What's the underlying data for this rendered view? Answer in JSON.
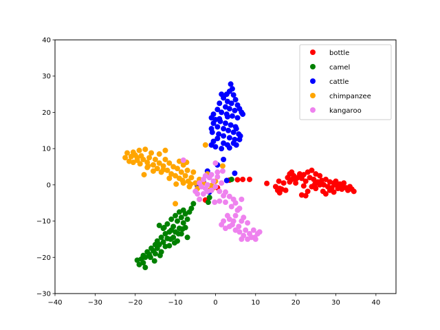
{
  "chart_data": {
    "type": "scatter",
    "title": "",
    "xlabel": "",
    "ylabel": "",
    "xlim": [
      -40,
      45
    ],
    "ylim": [
      -30,
      40
    ],
    "xticks": [
      -40,
      -30,
      -20,
      -10,
      0,
      10,
      20,
      30,
      40
    ],
    "yticks": [
      -30,
      -20,
      -10,
      0,
      10,
      20,
      30,
      40
    ],
    "grid": false,
    "legend_position": "top-right",
    "series": [
      {
        "name": "bottle",
        "color": "#ff0000",
        "points": [
          [
            12.8,
            0.4
          ],
          [
            15,
            -0.5
          ],
          [
            15.5,
            -1.5
          ],
          [
            16,
            -2.2
          ],
          [
            16.5,
            -1.2
          ],
          [
            17,
            0.5
          ],
          [
            17.5,
            -1.5
          ],
          [
            16,
            -1
          ],
          [
            15.8,
            1
          ],
          [
            18,
            2
          ],
          [
            18.5,
            3
          ],
          [
            19,
            3.5
          ],
          [
            19.5,
            2.5
          ],
          [
            20,
            1.5
          ],
          [
            20.5,
            2
          ],
          [
            21,
            3
          ],
          [
            21.5,
            1.8
          ],
          [
            22,
            2.8
          ],
          [
            22.5,
            1
          ],
          [
            23,
            3.5
          ],
          [
            23.5,
            2
          ],
          [
            24,
            4
          ],
          [
            24.5,
            1.5
          ],
          [
            25,
            3
          ],
          [
            25.5,
            0.8
          ],
          [
            26,
            2.5
          ],
          [
            26.5,
            1.2
          ],
          [
            27,
            0
          ],
          [
            27.5,
            1.5
          ],
          [
            28,
            -0.5
          ],
          [
            28.5,
            0.8
          ],
          [
            29,
            -0.8
          ],
          [
            29.5,
            0.5
          ],
          [
            30,
            1
          ],
          [
            30.5,
            -1
          ],
          [
            31,
            0.2
          ],
          [
            31.5,
            -1.2
          ],
          [
            32,
            0.5
          ],
          [
            32.5,
            -0.8
          ],
          [
            33,
            -1.5
          ],
          [
            33.5,
            -0.5
          ],
          [
            34,
            -1.2
          ],
          [
            34.5,
            -1.8
          ],
          [
            21.5,
            -2.8
          ],
          [
            22.5,
            -3
          ],
          [
            23,
            -1.8
          ],
          [
            24,
            -0.5
          ],
          [
            25,
            -1
          ],
          [
            26,
            0
          ],
          [
            27.5,
            -2.5
          ],
          [
            28.5,
            -1.5
          ],
          [
            30,
            0
          ],
          [
            31.5,
            -0.5
          ],
          [
            20,
            0.5
          ],
          [
            19,
            1.5
          ],
          [
            18.5,
            0.8
          ],
          [
            22,
            -0.3
          ],
          [
            24.8,
            0.2
          ],
          [
            26.8,
            -1.8
          ],
          [
            29.5,
            -2
          ],
          [
            -2.5,
            -4.2
          ],
          [
            5.5,
            1.4
          ],
          [
            6.8,
            1.5
          ],
          [
            8.5,
            1.5
          ],
          [
            3.5,
            1.3
          ],
          [
            0.5,
            -0.8
          ]
        ]
      },
      {
        "name": "camel",
        "color": "#008000",
        "points": [
          [
            -19.5,
            -20.8
          ],
          [
            -19,
            -22
          ],
          [
            -18.5,
            -20.5
          ],
          [
            -18,
            -21.5
          ],
          [
            -17.5,
            -20
          ],
          [
            -17,
            -18.5
          ],
          [
            -17.5,
            -22.8
          ],
          [
            -16.5,
            -19.2
          ],
          [
            -16,
            -17.5
          ],
          [
            -15.5,
            -18.2
          ],
          [
            -15,
            -16.5
          ],
          [
            -15,
            -19
          ],
          [
            -14.5,
            -17.5
          ],
          [
            -14.5,
            -15.5
          ],
          [
            -14,
            -16.5
          ],
          [
            -14,
            -11.2
          ],
          [
            -13.5,
            -14.5
          ],
          [
            -13.5,
            -18.5
          ],
          [
            -13,
            -15.8
          ],
          [
            -13,
            -12
          ],
          [
            -12.5,
            -13.5
          ],
          [
            -12.5,
            -17
          ],
          [
            -12,
            -14.8
          ],
          [
            -12,
            -10.8
          ],
          [
            -11.5,
            -13
          ],
          [
            -11.5,
            -16.8
          ],
          [
            -11,
            -12.5
          ],
          [
            -11,
            -9.5
          ],
          [
            -10.5,
            -14.5
          ],
          [
            -10.5,
            -11.5
          ],
          [
            -10,
            -8.5
          ],
          [
            -10,
            -13
          ],
          [
            -9.5,
            -10
          ],
          [
            -9.5,
            -15.5
          ],
          [
            -9,
            -7.5
          ],
          [
            -9,
            -12
          ],
          [
            -8.5,
            -9
          ],
          [
            -8.5,
            -13.5
          ],
          [
            -8,
            -10.5
          ],
          [
            -8,
            -7
          ],
          [
            -7.5,
            -11.8
          ],
          [
            -7.5,
            -8
          ],
          [
            -7,
            -14.5
          ],
          [
            -7,
            -9.5
          ],
          [
            -6.5,
            -7.5
          ],
          [
            -6,
            -6.5
          ],
          [
            -18,
            -19.5
          ],
          [
            -16.2,
            -20
          ],
          [
            -15.2,
            -21
          ],
          [
            -13.8,
            -19.5
          ],
          [
            -12.8,
            -11.8
          ],
          [
            -11.2,
            -15
          ],
          [
            -10.2,
            -16
          ],
          [
            -9.2,
            -13.5
          ],
          [
            -8.2,
            -12.2
          ],
          [
            -5.5,
            -5.2
          ],
          [
            -1.8,
            -4.8
          ],
          [
            -1.5,
            -3.5
          ],
          [
            4,
            1.5
          ]
        ]
      },
      {
        "name": "cattle",
        "color": "#0000ff",
        "points": [
          [
            3.8,
            27.8
          ],
          [
            4.2,
            26.5
          ],
          [
            3.5,
            25.8
          ],
          [
            2.8,
            25
          ],
          [
            4.5,
            24.8
          ],
          [
            5,
            23.5
          ],
          [
            1.5,
            25
          ],
          [
            2,
            24
          ],
          [
            3,
            23
          ],
          [
            4,
            22.5
          ],
          [
            5.5,
            22
          ],
          [
            6,
            21
          ],
          [
            1,
            22.5
          ],
          [
            2.5,
            21.5
          ],
          [
            3.5,
            21
          ],
          [
            4.8,
            20.5
          ],
          [
            6.5,
            20
          ],
          [
            0.5,
            20.8
          ],
          [
            1.5,
            20
          ],
          [
            2.8,
            19.5
          ],
          [
            4.2,
            19
          ],
          [
            5.5,
            18.5
          ],
          [
            6.8,
            19.5
          ],
          [
            -0.5,
            19.5
          ],
          [
            -1,
            18.5
          ],
          [
            0,
            18
          ],
          [
            1.2,
            17.5
          ],
          [
            2.5,
            17
          ],
          [
            3.8,
            16.5
          ],
          [
            5,
            16
          ],
          [
            -0.5,
            17
          ],
          [
            0.5,
            16
          ],
          [
            2,
            15.5
          ],
          [
            3.2,
            15
          ],
          [
            4.5,
            14.5
          ],
          [
            5.8,
            14
          ],
          [
            -1,
            15.5
          ],
          [
            -0.8,
            14.5
          ],
          [
            0.8,
            14
          ],
          [
            2,
            13.5
          ],
          [
            3.5,
            13
          ],
          [
            4.8,
            12.5
          ],
          [
            -0.5,
            12
          ],
          [
            0.5,
            12.8
          ],
          [
            2,
            11.5
          ],
          [
            3,
            11
          ],
          [
            4.5,
            11.5
          ],
          [
            6,
            12.5
          ],
          [
            -1,
            11
          ],
          [
            0,
            10.5
          ],
          [
            1.5,
            10
          ],
          [
            3.5,
            10.2
          ],
          [
            5.2,
            11
          ],
          [
            6.2,
            13.5
          ],
          [
            2,
            7
          ],
          [
            4.8,
            3.2
          ],
          [
            -2,
            3.8
          ],
          [
            -3,
            0.8
          ],
          [
            -4.5,
            -0.2
          ],
          [
            -1.5,
            -2
          ],
          [
            0.5,
            5.5
          ],
          [
            2.8,
            1.2
          ],
          [
            -0.8,
            -0.5
          ],
          [
            5.2,
            15.5
          ],
          [
            1,
            18.2
          ],
          [
            3,
            18.8
          ]
        ]
      },
      {
        "name": "chimpanzee",
        "color": "#ffa500",
        "points": [
          [
            -22.5,
            7.5
          ],
          [
            -22,
            8.8
          ],
          [
            -21.5,
            6.5
          ],
          [
            -21,
            7.8
          ],
          [
            -20.5,
            9
          ],
          [
            -20,
            8.2
          ],
          [
            -19.5,
            6.8
          ],
          [
            -19,
            9.5
          ],
          [
            -18.8,
            5.8
          ],
          [
            -18.5,
            8
          ],
          [
            -18,
            7
          ],
          [
            -17.5,
            9.8
          ],
          [
            -17,
            6.2
          ],
          [
            -17,
            4.8
          ],
          [
            -16.5,
            7.5
          ],
          [
            -16,
            8.8
          ],
          [
            -15.5,
            5.5
          ],
          [
            -15,
            7
          ],
          [
            -14.5,
            4.5
          ],
          [
            -14,
            6
          ],
          [
            -14,
            8.5
          ],
          [
            -13.5,
            3.5
          ],
          [
            -13,
            5.2
          ],
          [
            -12.5,
            7
          ],
          [
            -12.5,
            9.5
          ],
          [
            -12,
            4
          ],
          [
            -11.5,
            6
          ],
          [
            -11,
            3
          ],
          [
            -10.5,
            5
          ],
          [
            -10,
            2.5
          ],
          [
            -9.5,
            4.5
          ],
          [
            -9,
            6.5
          ],
          [
            -9,
            1.8
          ],
          [
            -8.5,
            3.5
          ],
          [
            -8,
            5.5
          ],
          [
            -8,
            0.5
          ],
          [
            -7.5,
            2.5
          ],
          [
            -7,
            4
          ],
          [
            -6.8,
            1
          ],
          [
            -6.5,
            -0.5
          ],
          [
            -6,
            2
          ],
          [
            -5.5,
            3.5
          ],
          [
            -5,
            0.5
          ],
          [
            -4.5,
            -1
          ],
          [
            -4,
            1.5
          ],
          [
            -3,
            0.5
          ],
          [
            -2.5,
            11
          ],
          [
            -2,
            3
          ],
          [
            -1.5,
            -1.5
          ],
          [
            -1,
            -0.2
          ],
          [
            0,
            1
          ],
          [
            -10,
            -5.2
          ],
          [
            -17.8,
            2.8
          ],
          [
            -20.5,
            6.2
          ],
          [
            -15.5,
            3.8
          ],
          [
            -13,
            4.2
          ],
          [
            -11.5,
            1.8
          ],
          [
            -9.8,
            0.2
          ],
          [
            -8.2,
            1.2
          ],
          [
            -7.2,
            6.2
          ],
          [
            -6.2,
            0.2
          ],
          [
            -0.5,
            -0.8
          ],
          [
            1.8,
            5.2
          ],
          [
            -19.5,
            7.5
          ],
          [
            -16.8,
            5.2
          ]
        ]
      },
      {
        "name": "kangaroo",
        "color": "#ee82ee",
        "points": [
          [
            -8,
            6.8
          ],
          [
            -5,
            -1.8
          ],
          [
            -4.5,
            -2.5
          ],
          [
            -4,
            0.5
          ],
          [
            -3.5,
            -0.5
          ],
          [
            -3,
            1.5
          ],
          [
            -2.5,
            -1
          ],
          [
            -2,
            0
          ],
          [
            -1.5,
            2
          ],
          [
            -1,
            -1.5
          ],
          [
            -0.5,
            1
          ],
          [
            0,
            -0.5
          ],
          [
            0.5,
            2.2
          ],
          [
            1,
            -1.8
          ],
          [
            1.5,
            0.5
          ],
          [
            2,
            -3
          ],
          [
            2.5,
            -2
          ],
          [
            -3,
            -2.5
          ],
          [
            -2,
            -1.8
          ],
          [
            -1,
            2.8
          ],
          [
            0.5,
            3.5
          ],
          [
            -2.5,
            2.5
          ],
          [
            0,
            6
          ],
          [
            1.8,
            3.8
          ],
          [
            -0.2,
            -4.8
          ],
          [
            1,
            -4.5
          ],
          [
            2.5,
            -4.8
          ],
          [
            3.5,
            -3.2
          ],
          [
            4.5,
            -4
          ],
          [
            4,
            -6
          ],
          [
            5,
            -5
          ],
          [
            5.5,
            -7
          ],
          [
            6,
            -6.5
          ],
          [
            6.5,
            -4
          ],
          [
            5,
            -8.5
          ],
          [
            4.5,
            -10
          ],
          [
            3.5,
            -9.5
          ],
          [
            3,
            -8.5
          ],
          [
            2,
            -10
          ],
          [
            1.5,
            -11
          ],
          [
            2.5,
            -12
          ],
          [
            3.5,
            -11.5
          ],
          [
            4.2,
            -11
          ],
          [
            5,
            -12.5
          ],
          [
            5.8,
            -11.5
          ],
          [
            6.5,
            -10
          ],
          [
            6,
            -13
          ],
          [
            7,
            -14
          ],
          [
            7.5,
            -12.5
          ],
          [
            8,
            -15
          ],
          [
            8.5,
            -13.5
          ],
          [
            9,
            -14.5
          ],
          [
            9.5,
            -12.5
          ],
          [
            10,
            -15
          ],
          [
            10.5,
            -13.5
          ],
          [
            11,
            -13
          ],
          [
            7,
            -9
          ],
          [
            8,
            -10.5
          ],
          [
            6.5,
            -15
          ],
          [
            9.8,
            -14.5
          ],
          [
            -4,
            -4
          ]
        ]
      }
    ]
  }
}
